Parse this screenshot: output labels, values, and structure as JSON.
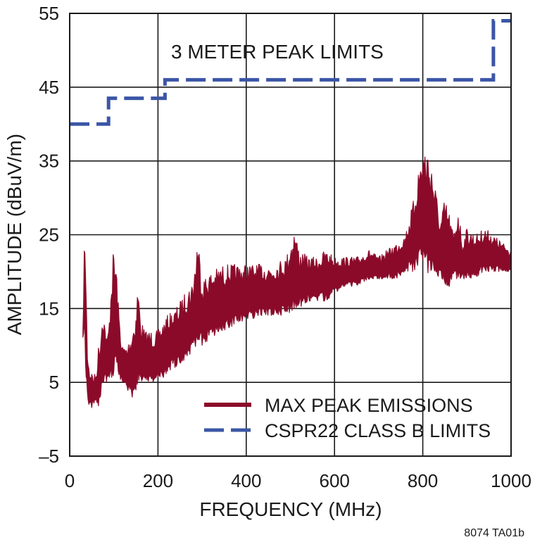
{
  "chart_data": {
    "type": "line",
    "xlabel": "FREQUENCY (MHz)",
    "ylabel": "AMPLITUDE (dBuV/m)",
    "xlim": [
      0,
      1000
    ],
    "ylim": [
      -5,
      55
    ],
    "x_ticks": [
      "0",
      "200",
      "400",
      "600",
      "800",
      "1000"
    ],
    "y_ticks": [
      "55",
      "45",
      "35",
      "25",
      "15",
      "5",
      "–5"
    ],
    "grid": true,
    "legend_position": "bottom-right",
    "annotation": "3 METER PEAK LIMITS",
    "figure_id": "8074 TA01b",
    "series": [
      {
        "name": "MAX PEAK EMISSIONS",
        "color": "#8b0a2a",
        "style": "solid-band",
        "x": [
          30,
          33,
          36,
          40,
          45,
          50,
          55,
          60,
          65,
          70,
          75,
          80,
          85,
          90,
          95,
          100,
          105,
          110,
          115,
          120,
          130,
          140,
          150,
          155,
          160,
          170,
          180,
          200,
          220,
          240,
          260,
          280,
          290,
          300,
          320,
          350,
          380,
          400,
          430,
          460,
          490,
          510,
          520,
          540,
          560,
          580,
          600,
          620,
          650,
          680,
          700,
          720,
          740,
          760,
          780,
          790,
          800,
          810,
          820,
          830,
          840,
          850,
          860,
          870,
          880,
          890,
          900,
          920,
          940,
          960,
          980,
          1000
        ],
        "upper": [
          12,
          24,
          23,
          10,
          7,
          6.5,
          6,
          6.5,
          10,
          12,
          16,
          13,
          11,
          14,
          21,
          23.5,
          22,
          16,
          12,
          10,
          10,
          12,
          15,
          19,
          14,
          12,
          12,
          12,
          14,
          15,
          17,
          19,
          25.5,
          19,
          20,
          21,
          21,
          21,
          21,
          21,
          22,
          26,
          23,
          22,
          22,
          23,
          22,
          22,
          22,
          23,
          22,
          23,
          24,
          25,
          30,
          34,
          37,
          37,
          35,
          31,
          27,
          30,
          28,
          25,
          29,
          24,
          26,
          25,
          26,
          25,
          24,
          23
        ],
        "lower": [
          11,
          12,
          7,
          3,
          1.5,
          1.5,
          2,
          2,
          1.5,
          2,
          4,
          5,
          5,
          5,
          5,
          5,
          6,
          6,
          5,
          5,
          4,
          3,
          3,
          5,
          5,
          5,
          5,
          5,
          6,
          7,
          8,
          9,
          9,
          10,
          11,
          12,
          13,
          13,
          14,
          14,
          14,
          15,
          15,
          16,
          16,
          16,
          17,
          18,
          18,
          19,
          19,
          19,
          19,
          20,
          20,
          21,
          21,
          19,
          19,
          19,
          19,
          18,
          18,
          19,
          19,
          19,
          19,
          19,
          20,
          20,
          20,
          20
        ]
      },
      {
        "name": "CSPR22 CLASS B LIMITS",
        "color": "#3b56a6",
        "style": "dashed-step",
        "x": [
          0,
          88,
          88,
          216,
          216,
          960,
          960,
          1000
        ],
        "y": [
          40,
          40,
          43.5,
          43.5,
          46,
          46,
          54,
          54
        ]
      }
    ]
  }
}
